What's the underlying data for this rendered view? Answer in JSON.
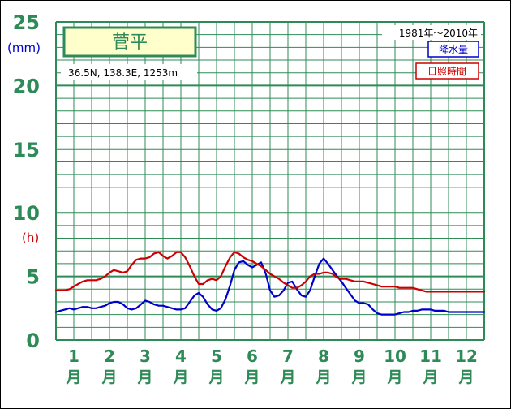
{
  "chart_data": {
    "type": "line",
    "title": "菅平",
    "subtitle": "36.5N,  138.3E,  1253m",
    "period": "1981年〜2010年",
    "y_unit_precip": "(mm)",
    "y_unit_sunshine": "(h)",
    "ylim": [
      0,
      25
    ],
    "y_ticks": [
      "0",
      "5",
      "10",
      "15",
      "20",
      "25"
    ],
    "grid": true,
    "legend_position": "top-right",
    "months": [
      {
        "num": "1",
        "kanji": "月"
      },
      {
        "num": "2",
        "kanji": "月"
      },
      {
        "num": "3",
        "kanji": "月"
      },
      {
        "num": "4",
        "kanji": "月"
      },
      {
        "num": "5",
        "kanji": "月"
      },
      {
        "num": "6",
        "kanji": "月"
      },
      {
        "num": "7",
        "kanji": "月"
      },
      {
        "num": "8",
        "kanji": "月"
      },
      {
        "num": "9",
        "kanji": "月"
      },
      {
        "num": "10",
        "kanji": "月"
      },
      {
        "num": "11",
        "kanji": "月"
      },
      {
        "num": "12",
        "kanji": "月"
      }
    ],
    "series": [
      {
        "name": "降水量",
        "color": "#0000cc",
        "x": [
          0.0,
          0.12,
          0.25,
          0.38,
          0.5,
          0.62,
          0.75,
          0.88,
          1.0,
          1.12,
          1.25,
          1.38,
          1.5,
          1.62,
          1.75,
          1.88,
          2.0,
          2.12,
          2.25,
          2.38,
          2.5,
          2.62,
          2.75,
          2.88,
          3.0,
          3.12,
          3.25,
          3.38,
          3.5,
          3.62,
          3.75,
          3.88,
          4.0,
          4.12,
          4.25,
          4.38,
          4.5,
          4.62,
          4.75,
          4.88,
          5.0,
          5.12,
          5.25,
          5.38,
          5.5,
          5.62,
          5.75,
          5.88,
          6.0,
          6.12,
          6.25,
          6.38,
          6.5,
          6.62,
          6.75,
          6.88,
          7.0,
          7.12,
          7.25,
          7.38,
          7.5,
          7.62,
          7.75,
          7.88,
          8.0,
          8.12,
          8.25,
          8.38,
          8.5,
          8.62,
          8.75,
          8.88,
          9.0,
          9.12,
          9.25,
          9.38,
          9.5,
          9.62,
          9.75,
          9.88,
          10.0,
          10.12,
          10.25,
          10.38,
          10.5,
          10.62,
          10.75,
          10.88,
          11.0,
          11.12,
          11.25,
          11.38,
          11.5,
          11.62,
          11.75,
          11.88,
          12.0
        ],
        "values": [
          2.2,
          2.3,
          2.4,
          2.5,
          2.4,
          2.5,
          2.6,
          2.6,
          2.5,
          2.5,
          2.6,
          2.7,
          2.9,
          3.0,
          3.0,
          2.8,
          2.5,
          2.4,
          2.5,
          2.8,
          3.1,
          3.0,
          2.8,
          2.7,
          2.7,
          2.6,
          2.5,
          2.4,
          2.4,
          2.5,
          3.0,
          3.5,
          3.7,
          3.4,
          2.8,
          2.4,
          2.3,
          2.5,
          3.2,
          4.3,
          5.5,
          6.1,
          6.2,
          5.9,
          5.7,
          5.9,
          6.1,
          5.2,
          3.9,
          3.4,
          3.5,
          3.9,
          4.5,
          4.6,
          4.0,
          3.5,
          3.4,
          3.9,
          5.0,
          6.0,
          6.4,
          6.0,
          5.5,
          5.0,
          4.6,
          4.1,
          3.6,
          3.1,
          2.9,
          2.9,
          2.8,
          2.4,
          2.1,
          2.0,
          2.0,
          2.0,
          2.0,
          2.1,
          2.2,
          2.2,
          2.3,
          2.3,
          2.4,
          2.4,
          2.4,
          2.3,
          2.3,
          2.3,
          2.2,
          2.2,
          2.2,
          2.2,
          2.2,
          2.2,
          2.2,
          2.2,
          2.2
        ]
      },
      {
        "name": "日照時間",
        "color": "#cc0000",
        "x": [
          0.0,
          0.12,
          0.25,
          0.38,
          0.5,
          0.62,
          0.75,
          0.88,
          1.0,
          1.12,
          1.25,
          1.38,
          1.5,
          1.62,
          1.75,
          1.88,
          2.0,
          2.12,
          2.25,
          2.38,
          2.5,
          2.62,
          2.75,
          2.88,
          3.0,
          3.12,
          3.25,
          3.38,
          3.5,
          3.62,
          3.75,
          3.88,
          4.0,
          4.12,
          4.25,
          4.38,
          4.5,
          4.62,
          4.75,
          4.88,
          5.0,
          5.12,
          5.25,
          5.38,
          5.5,
          5.62,
          5.75,
          5.88,
          6.0,
          6.12,
          6.25,
          6.38,
          6.5,
          6.62,
          6.75,
          6.88,
          7.0,
          7.12,
          7.25,
          7.38,
          7.5,
          7.62,
          7.75,
          7.88,
          8.0,
          8.12,
          8.25,
          8.38,
          8.5,
          8.62,
          8.75,
          8.88,
          9.0,
          9.12,
          9.25,
          9.38,
          9.5,
          9.62,
          9.75,
          9.88,
          10.0,
          10.12,
          10.25,
          10.38,
          10.5,
          10.62,
          10.75,
          10.88,
          11.0,
          11.12,
          11.25,
          11.38,
          11.5,
          11.62,
          11.75,
          11.88,
          12.0
        ],
        "values": [
          3.9,
          3.9,
          3.9,
          4.0,
          4.2,
          4.4,
          4.6,
          4.7,
          4.7,
          4.7,
          4.8,
          5.0,
          5.3,
          5.5,
          5.4,
          5.3,
          5.4,
          5.9,
          6.3,
          6.4,
          6.4,
          6.5,
          6.8,
          6.9,
          6.6,
          6.4,
          6.6,
          6.9,
          6.9,
          6.5,
          5.8,
          5.0,
          4.4,
          4.4,
          4.7,
          4.8,
          4.7,
          5.0,
          5.8,
          6.5,
          6.9,
          6.8,
          6.5,
          6.3,
          6.2,
          6.0,
          5.8,
          5.5,
          5.2,
          5.0,
          4.8,
          4.5,
          4.3,
          4.1,
          4.1,
          4.3,
          4.6,
          5.0,
          5.2,
          5.2,
          5.3,
          5.3,
          5.2,
          4.9,
          4.8,
          4.8,
          4.7,
          4.6,
          4.6,
          4.6,
          4.5,
          4.4,
          4.3,
          4.2,
          4.2,
          4.2,
          4.2,
          4.1,
          4.1,
          4.1,
          4.1,
          4.0,
          3.9,
          3.8,
          3.8,
          3.8,
          3.8,
          3.8,
          3.8,
          3.8,
          3.8,
          3.8,
          3.8,
          3.8,
          3.8,
          3.8,
          3.8
        ]
      }
    ]
  },
  "colors": {
    "grid": "#2e8b57",
    "title_box_fill": "#ffffcc"
  }
}
